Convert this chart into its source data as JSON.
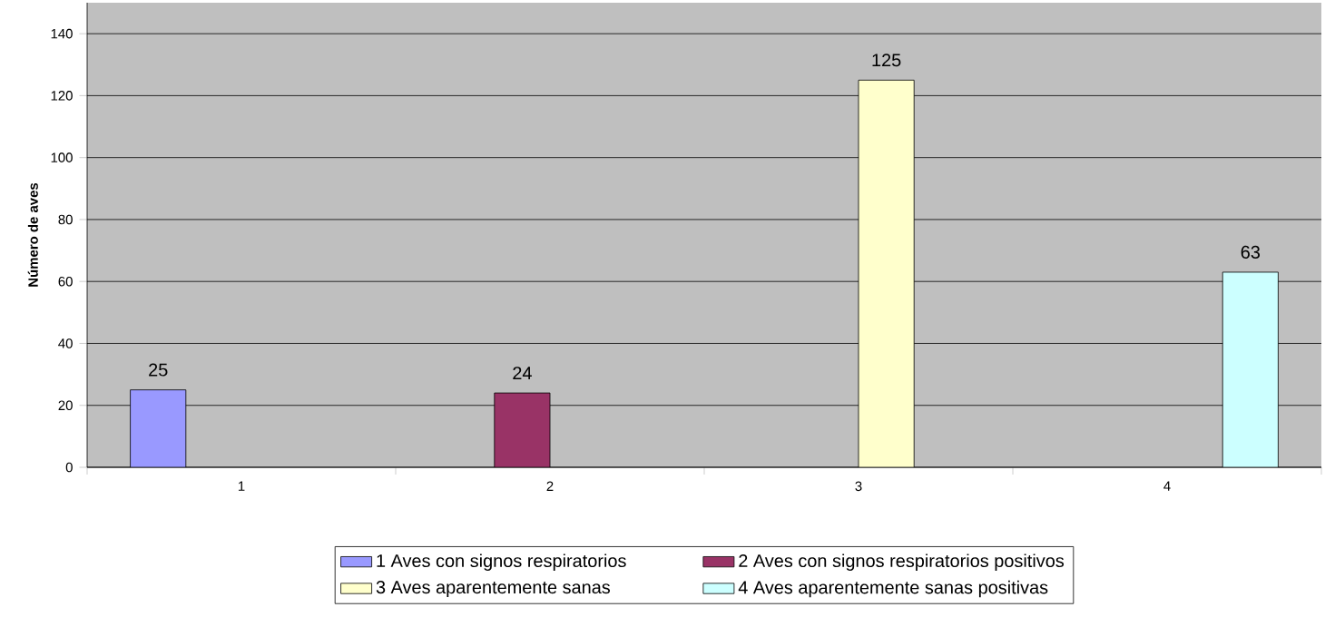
{
  "chart_data": {
    "type": "bar",
    "ylabel": "Número de aves",
    "categories": [
      "1",
      "2",
      "3",
      "4"
    ],
    "series": [
      {
        "name": "1 Aves con signos respiratorios",
        "color": "#9999ff",
        "values": [
          25,
          null,
          null,
          null
        ]
      },
      {
        "name": "2 Aves con signos respiratorios positivos",
        "color": "#993366",
        "values": [
          null,
          24,
          null,
          null
        ]
      },
      {
        "name": "3 Aves aparentemente sanas",
        "color": "#ffffcc",
        "values": [
          null,
          null,
          125,
          null
        ]
      },
      {
        "name": "4 Aves aparentemente sanas positivas",
        "color": "#ccffff",
        "values": [
          null,
          null,
          null,
          63
        ]
      }
    ],
    "ylim": [
      0,
      150
    ],
    "yticks": [
      0,
      20,
      40,
      60,
      80,
      100,
      120,
      140
    ],
    "grid": "y",
    "legend": "bottom",
    "data_labels": true
  }
}
